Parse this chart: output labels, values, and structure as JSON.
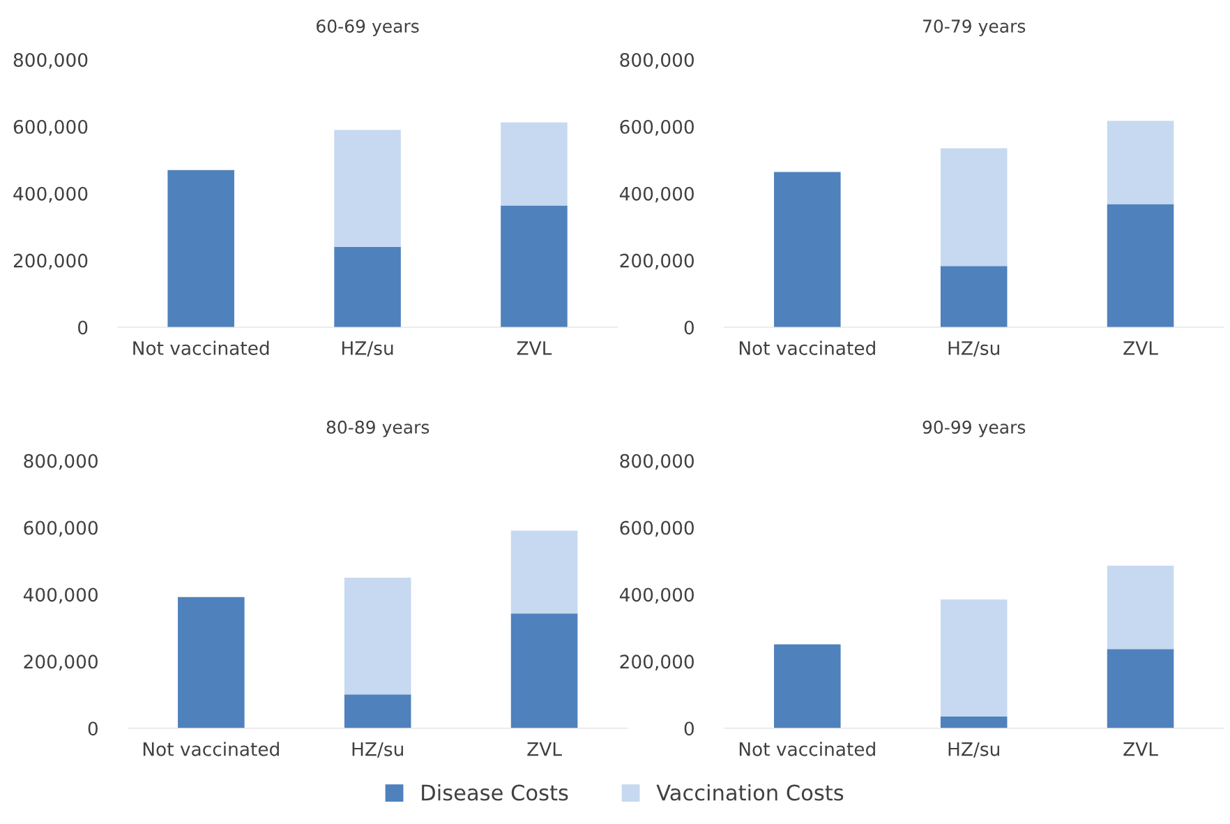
{
  "chart_data": [
    {
      "type": "bar",
      "stacked": true,
      "title": "60-69 years",
      "categories": [
        "Not vaccinated",
        "HZ/su",
        "ZVL"
      ],
      "ylim": [
        0,
        800000
      ],
      "yticks": [
        {
          "value": 0,
          "label": "0"
        },
        {
          "value": 200000,
          "label": "200,000"
        },
        {
          "value": 400000,
          "label": "400,000"
        },
        {
          "value": 600000,
          "label": "600,000"
        },
        {
          "value": 800000,
          "label": "800,000"
        }
      ],
      "legend": "bottom",
      "grid": false,
      "series": [
        {
          "name": "Disease Costs",
          "color": "#4f81bd",
          "values": [
            470000,
            240000,
            364000
          ]
        },
        {
          "name": "Vaccination Costs",
          "color": "#c6d9f0",
          "values": [
            null,
            350000,
            248000
          ]
        }
      ]
    },
    {
      "type": "bar",
      "stacked": true,
      "title": "70-79 years",
      "categories": [
        "Not vaccinated",
        "HZ/su",
        "ZVL"
      ],
      "ylim": [
        0,
        800000
      ],
      "yticks": [
        {
          "value": 0,
          "label": "0"
        },
        {
          "value": 200000,
          "label": "200,000"
        },
        {
          "value": 400000,
          "label": "400,000"
        },
        {
          "value": 600000,
          "label": "600,000"
        },
        {
          "value": 800000,
          "label": "800,000"
        }
      ],
      "legend": "bottom",
      "grid": false,
      "series": [
        {
          "color": "#4f81bd",
          "values": [
            464000,
            183000,
            368000
          ]
        },
        {
          "color": "#c6d9f0",
          "values": [
            null,
            352000,
            249000
          ]
        }
      ]
    },
    {
      "type": "bar",
      "stacked": true,
      "title": "80-89 years",
      "categories": [
        "Not vaccinated",
        "HZ/su",
        "ZVL"
      ],
      "ylim": [
        0,
        800000
      ],
      "yticks": [
        {
          "value": 0,
          "label": "0"
        },
        {
          "value": 200000,
          "label": "200,000"
        },
        {
          "value": 400000,
          "label": "400,000"
        },
        {
          "value": 600000,
          "label": "600,000"
        },
        {
          "value": 800000,
          "label": "800,000"
        }
      ],
      "legend": "bottom",
      "grid": false,
      "series": [
        {
          "color": "#4f81bd",
          "values": [
            392000,
            101000,
            343000
          ]
        },
        {
          "color": "#c6d9f0",
          "values": [
            null,
            349000,
            248000
          ]
        }
      ]
    },
    {
      "type": "bar",
      "stacked": true,
      "title": "90-99 years",
      "categories": [
        "Not vaccinated",
        "HZ/su",
        "ZVL"
      ],
      "ylim": [
        0,
        800000
      ],
      "yticks": [
        {
          "value": 0,
          "label": "0"
        },
        {
          "value": 200000,
          "label": "200,000"
        },
        {
          "value": 400000,
          "label": "400,000"
        },
        {
          "value": 600000,
          "label": "600,000"
        },
        {
          "value": 800000,
          "label": "800,000"
        }
      ],
      "legend": "bottom",
      "grid": false,
      "series": [
        {
          "color": "#4f81bd",
          "values": [
            251000,
            35000,
            237000
          ]
        },
        {
          "color": "#c6d9f0",
          "values": [
            null,
            350000,
            249000
          ]
        }
      ]
    }
  ]
}
